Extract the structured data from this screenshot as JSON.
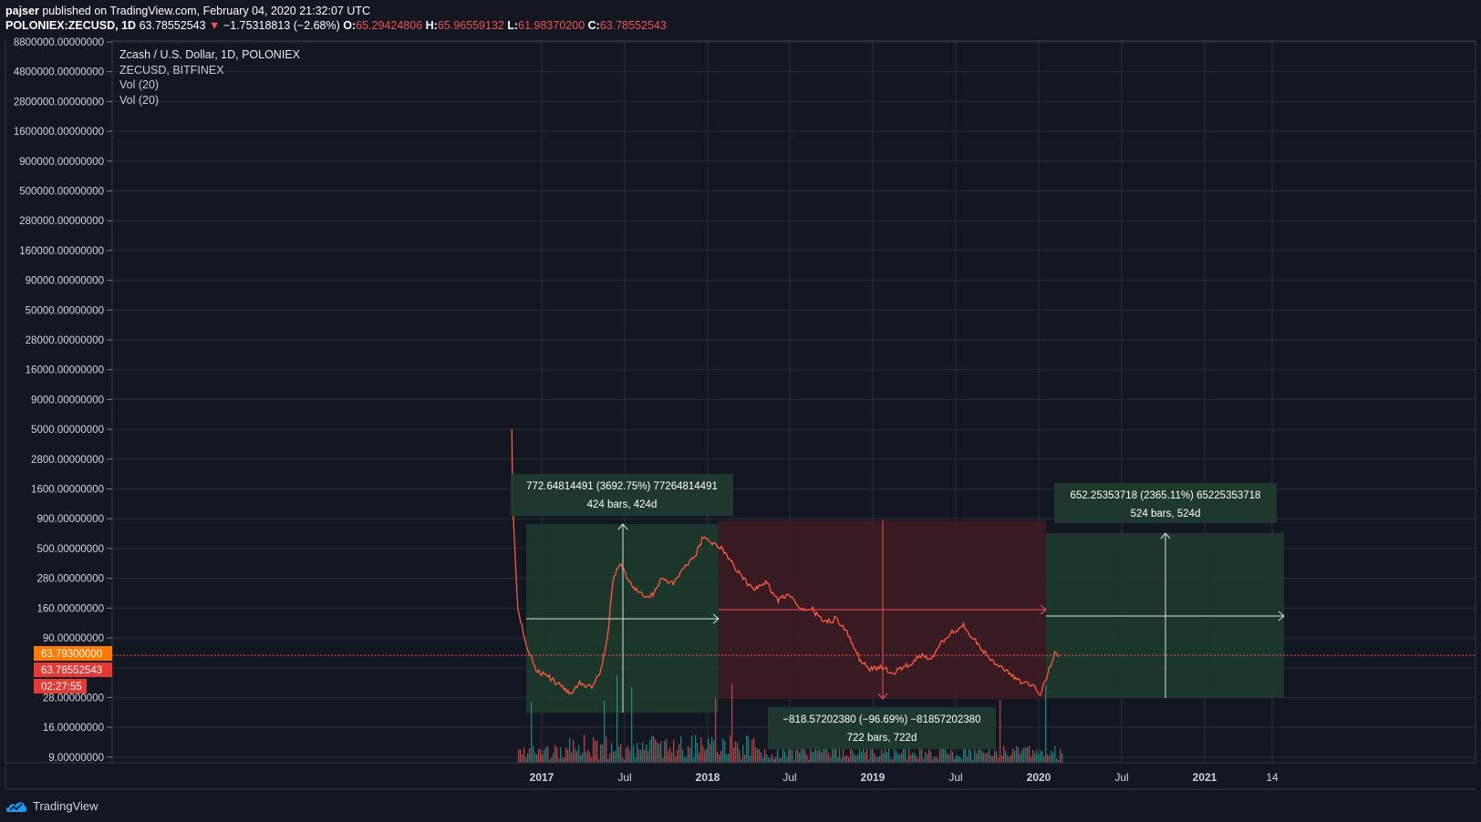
{
  "header": {
    "author": "pajser",
    "published_text": "published on TradingView.com, February 04, 2020 21:32:07 UTC",
    "symbol": "POLONIEX:ZECUSD, 1D",
    "last": "63.78552543",
    "change": "−1.75318813 (−2.68%)",
    "o_label": "O:",
    "o": "65.29424806",
    "h_label": "H:",
    "h": "65.96559132",
    "l_label": "L:",
    "l": "61.98370200",
    "c_label": "C:",
    "c": "63.78552543"
  },
  "legend": {
    "title": "Zcash / U.S. Dollar, 1D, POLONIEX",
    "overlay": "ZECUSD, BITFINEX",
    "vol1": "Vol (20)",
    "vol2": "Vol (20)"
  },
  "badges": {
    "price_orange": "63.79300000",
    "price_red": "63.78552543",
    "countdown": "02:27:55"
  },
  "footer": {
    "brand": "TradingView"
  },
  "colors": {
    "background": "#131722",
    "grid": "#2a2e39",
    "up": "#26a69a",
    "down": "#ef5350",
    "gain_zone": "#1f3a2e",
    "loss_zone": "#3d1b22",
    "price_line": "#ff5b3a",
    "badge_orange": "#ff7a00",
    "badge_red": "#e53935"
  },
  "chart_data": {
    "type": "line",
    "title": "Zcash / U.S. Dollar, 1D, POLONIEX",
    "scale": "log",
    "y_ticks": [
      "8800000.00000000",
      "4800000.00000000",
      "2800000.00000000",
      "1600000.00000000",
      "900000.00000000",
      "500000.00000000",
      "280000.00000000",
      "160000.00000000",
      "90000.00000000",
      "50000.00000000",
      "28000.00000000",
      "16000.00000000",
      "9000.00000000",
      "5000.00000000",
      "2800.00000000",
      "1600.00000000",
      "900.00000000",
      "500.00000000",
      "280.00000000",
      "160.00000000",
      "90.00000000",
      "50.00000000",
      "28.00000000",
      "16.00000000",
      "9.00000000"
    ],
    "x_ticks": [
      "2017",
      "Jul",
      "2018",
      "Jul",
      "2019",
      "Jul",
      "2020",
      "Jul",
      "2021",
      "14"
    ],
    "series": [
      {
        "name": "ZECUSD",
        "x": [
          "2016-10-28",
          "2016-10-29",
          "2016-10-30",
          "2016-11-01",
          "2016-11-10",
          "2016-12-01",
          "2016-12-20",
          "2017-01-15",
          "2017-02-10",
          "2017-03-05",
          "2017-03-25",
          "2017-04-20",
          "2017-05-10",
          "2017-05-25",
          "2017-06-05",
          "2017-06-20",
          "2017-07-15",
          "2017-08-10",
          "2017-09-01",
          "2017-09-20",
          "2017-10-15",
          "2017-11-05",
          "2017-12-01",
          "2017-12-20",
          "2018-01-05",
          "2018-01-25",
          "2018-02-20",
          "2018-03-10",
          "2018-04-05",
          "2018-05-05",
          "2018-06-01",
          "2018-06-25",
          "2018-07-20",
          "2018-08-15",
          "2018-09-10",
          "2018-10-05",
          "2018-11-01",
          "2018-11-25",
          "2018-12-15",
          "2019-01-10",
          "2019-02-10",
          "2019-03-10",
          "2019-04-05",
          "2019-05-01",
          "2019-05-25",
          "2019-06-15",
          "2019-07-10",
          "2019-08-05",
          "2019-09-01",
          "2019-09-25",
          "2019-10-20",
          "2019-11-15",
          "2019-12-10",
          "2019-12-25",
          "2020-01-10",
          "2020-01-25",
          "2020-02-04"
        ],
        "y": [
          5000,
          2000,
          1200,
          800,
          150,
          75,
          48,
          42,
          36,
          30,
          38,
          34,
          48,
          95,
          260,
          380,
          250,
          200,
          210,
          280,
          250,
          330,
          420,
          640,
          570,
          520,
          380,
          300,
          230,
          260,
          185,
          210,
          160,
          155,
          120,
          130,
          95,
          60,
          48,
          50,
          46,
          52,
          64,
          60,
          85,
          100,
          115,
          85,
          62,
          52,
          44,
          38,
          34,
          30,
          45,
          65,
          63.79
        ]
      }
    ],
    "measurements": [
      {
        "label1": "772.64814491 (3692.75%) 77264814491",
        "label2": "424 bars, 424d"
      },
      {
        "label1": "−818.57202380 (−96.69%) −81857202380",
        "label2": "722 bars, 722d"
      },
      {
        "label1": "652.25353718 (2365.11%) 65225353718",
        "label2": "524 bars, 524d"
      }
    ],
    "grid": true,
    "legend": "top-left"
  }
}
